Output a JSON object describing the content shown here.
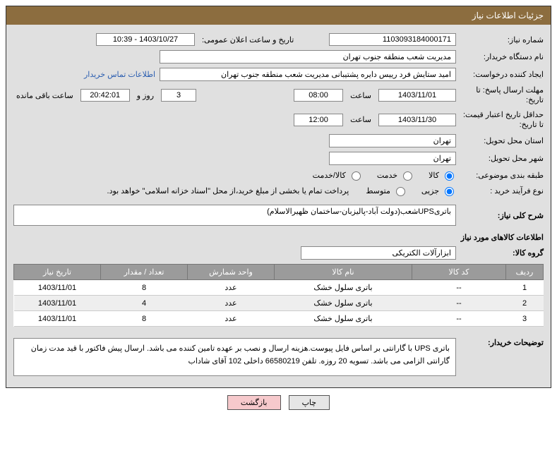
{
  "header": {
    "title": "جزئیات اطلاعات نیاز"
  },
  "labels": {
    "need_no": "شماره نیاز:",
    "announce_dt": "تاریخ و ساعت اعلان عمومی:",
    "buyer_org": "نام دستگاه خریدار:",
    "requester": "ایجاد کننده درخواست:",
    "contact_link": "اطلاعات تماس خریدار",
    "reply_deadline": "مهلت ارسال پاسخ: تا تاریخ:",
    "hour": "ساعت",
    "days_and": "روز و",
    "remaining": "ساعت باقی مانده",
    "price_validity": "حداقل تاریخ اعتبار قیمت: تا تاریخ:",
    "delivery_prov": "استان محل تحویل:",
    "delivery_city": "شهر محل تحویل:",
    "subject_class": "طبقه بندی موضوعی:",
    "purchase_type": "نوع فرآیند خرید :",
    "need_summary": "شرح کلی نیاز:",
    "items_info": "اطلاعات کالاهای مورد نیاز",
    "goods_group": "گروه کالا:",
    "buyer_notes": "توضیحات خریدار:"
  },
  "values": {
    "need_no": "1103093184000171",
    "announce_dt": "1403/10/27 - 10:39",
    "buyer_org": "مدیریت شعب منطقه جنوب تهران",
    "requester": "امید ستایش فرد رییس دایره پشتیبانی مدیریت شعب منطقه جنوب تهران",
    "reply_date": "1403/11/01",
    "reply_time": "08:00",
    "remaining_days": "3",
    "remaining_time": "20:42:01",
    "price_valid_date": "1403/11/30",
    "price_valid_time": "12:00",
    "delivery_prov": "تهران",
    "delivery_city": "تهران",
    "need_summary": "باتریUPSشعب(دولت آباد-پالیزبان-ساختمان ظهیرالاسلام)",
    "goods_group": "ابزارآلات الکتریکی",
    "buyer_notes": "باتری UPS با گارانتی بر اساس فایل پیوست.هزینه ارسال و نصب بر عهده تامین کننده می باشد. ارسال پیش فاکتور با قید مدت زمان گارانتی الزامی می باشد. تسویه 20 روزه. تلفن 66580219 داخلی 102 آقای شاداب",
    "payment_note": "پرداخت تمام یا بخشی از مبلغ خرید،از محل \"اسناد خزانه اسلامی\" خواهد بود."
  },
  "radios": {
    "subject": {
      "options": [
        "کالا",
        "خدمت",
        "کالا/خدمت"
      ],
      "selected": 0
    },
    "purchase": {
      "options": [
        "جزیی",
        "متوسط"
      ],
      "selected": 0
    }
  },
  "table": {
    "headers": [
      "ردیف",
      "کد کالا",
      "نام کالا",
      "واحد شمارش",
      "تعداد / مقدار",
      "تاریخ نیاز"
    ],
    "col_widths": [
      "40px",
      "120px",
      "auto",
      "110px",
      "110px",
      "110px"
    ],
    "rows": [
      [
        "1",
        "--",
        "باتری سلول خشک",
        "عدد",
        "8",
        "1403/11/01"
      ],
      [
        "2",
        "--",
        "باتری سلول خشک",
        "عدد",
        "4",
        "1403/11/01"
      ],
      [
        "3",
        "--",
        "باتری سلول خشک",
        "عدد",
        "8",
        "1403/11/01"
      ]
    ]
  },
  "buttons": {
    "print": "چاپ",
    "back": "بازگشت"
  },
  "colors": {
    "header_bg": "#8c6d3f",
    "panel_bg": "#e0e0e0",
    "th_bg": "#9b9b9b",
    "btn_back_bg": "#f6c9cc"
  }
}
